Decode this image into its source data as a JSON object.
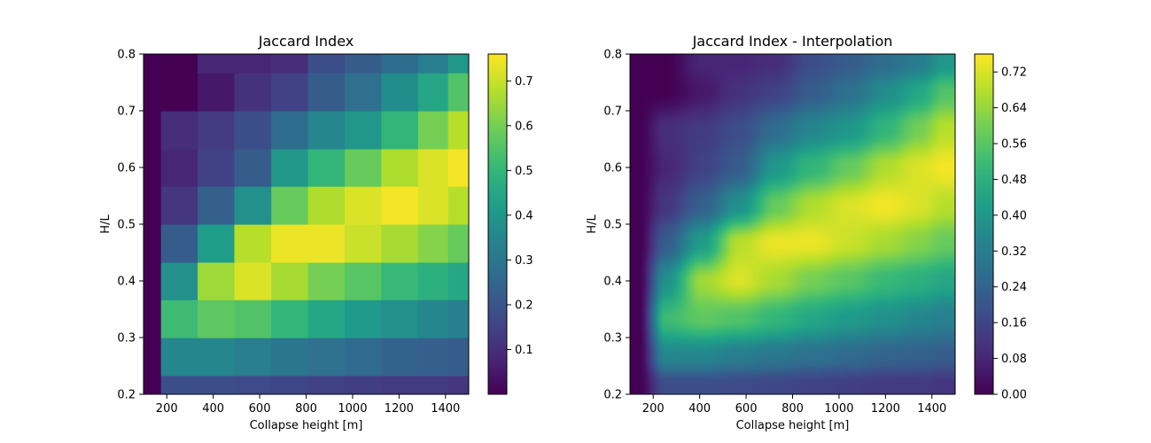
{
  "chart_data": [
    {
      "type": "heatmap",
      "title": "Jaccard Index",
      "xlabel": "Collapse height [m]",
      "ylabel": "H/L",
      "xlim": [
        100,
        1500
      ],
      "ylim": [
        0.2,
        0.8
      ],
      "xticks": [
        "200",
        "400",
        "600",
        "800",
        "1000",
        "1200",
        "1400"
      ],
      "yticks": [
        "0.2",
        "0.3",
        "0.4",
        "0.5",
        "0.6",
        "0.7",
        "0.8"
      ],
      "x_edges": [
        100,
        175,
        333,
        491,
        650,
        808,
        966,
        1124,
        1282,
        1411,
        1500
      ],
      "y_edges": [
        0.2,
        0.233,
        0.3,
        0.367,
        0.433,
        0.5,
        0.567,
        0.633,
        0.7,
        0.767,
        0.8
      ],
      "values": [
        [
          0.0,
          0.18,
          0.18,
          0.17,
          0.16,
          0.15,
          0.14,
          0.13,
          0.13,
          0.12
        ],
        [
          0.0,
          0.35,
          0.35,
          0.32,
          0.3,
          0.28,
          0.26,
          0.24,
          0.23,
          0.22
        ],
        [
          0.0,
          0.52,
          0.57,
          0.55,
          0.5,
          0.45,
          0.41,
          0.38,
          0.35,
          0.33
        ],
        [
          0.0,
          0.38,
          0.65,
          0.72,
          0.66,
          0.6,
          0.56,
          0.51,
          0.48,
          0.45
        ],
        [
          0.0,
          0.22,
          0.42,
          0.68,
          0.74,
          0.74,
          0.7,
          0.66,
          0.62,
          0.58
        ],
        [
          0.0,
          0.12,
          0.23,
          0.38,
          0.58,
          0.67,
          0.72,
          0.75,
          0.72,
          0.68
        ],
        [
          0.0,
          0.08,
          0.15,
          0.22,
          0.4,
          0.5,
          0.58,
          0.67,
          0.72,
          0.75
        ],
        [
          0.0,
          0.1,
          0.13,
          0.18,
          0.27,
          0.35,
          0.4,
          0.5,
          0.6,
          0.68
        ],
        [
          0.0,
          0.0,
          0.05,
          0.11,
          0.15,
          0.22,
          0.28,
          0.37,
          0.45,
          0.55
        ],
        [
          0.0,
          0.0,
          0.08,
          0.08,
          0.1,
          0.18,
          0.22,
          0.27,
          0.32,
          0.4
        ]
      ],
      "colorbar": {
        "min": 0.0,
        "max": 0.76,
        "ticks": [
          "0.1",
          "0.2",
          "0.3",
          "0.4",
          "0.5",
          "0.6",
          "0.7"
        ]
      },
      "colormap": "viridis"
    },
    {
      "type": "heatmap",
      "title": "Jaccard Index - Interpolation",
      "xlabel": "Collapse height [m]",
      "ylabel": "H/L",
      "xlim": [
        100,
        1500
      ],
      "ylim": [
        0.2,
        0.8
      ],
      "xticks": [
        "200",
        "400",
        "600",
        "800",
        "1000",
        "1200",
        "1400"
      ],
      "yticks": [
        "0.2",
        "0.3",
        "0.4",
        "0.5",
        "0.6",
        "0.7",
        "0.8"
      ],
      "interpolated": true,
      "colorbar": {
        "min": 0.0,
        "max": 0.76,
        "ticks": [
          "0.00",
          "0.08",
          "0.16",
          "0.24",
          "0.32",
          "0.40",
          "0.48",
          "0.56",
          "0.64",
          "0.72"
        ]
      },
      "colormap": "viridis"
    }
  ]
}
